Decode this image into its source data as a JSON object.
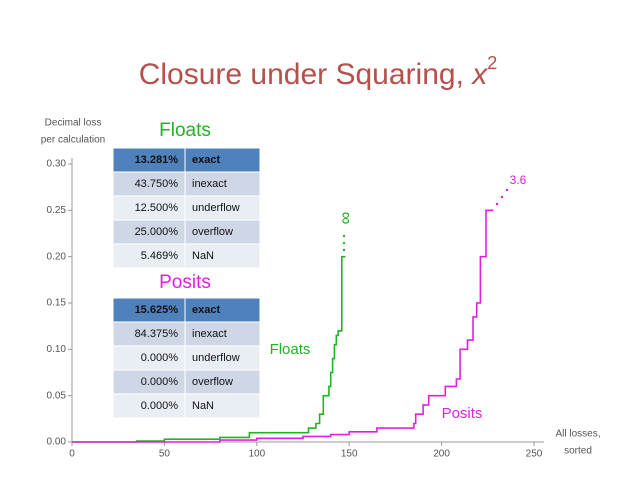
{
  "chart_data": {
    "type": "line",
    "title": "Closure under Squaring,",
    "title_var": "x",
    "title_sup": "2",
    "ylabel_lines": [
      "Decimal loss",
      "per calculation"
    ],
    "xlabel_lines": [
      "All losses,",
      "sorted"
    ],
    "xlim": [
      0,
      250
    ],
    "xticks": [
      0,
      50,
      100,
      150,
      200,
      250
    ],
    "ylim": [
      0,
      0.3
    ],
    "yticks": [
      {
        "value": 0,
        "label": "0.00"
      },
      {
        "value": 0.05,
        "label": "0.05"
      },
      {
        "value": 0.1,
        "label": "0.10"
      },
      {
        "value": 0.15,
        "label": "0.15"
      },
      {
        "value": 0.2,
        "label": "0.20"
      },
      {
        "value": 0.25,
        "label": "0.25"
      },
      {
        "value": 0.3,
        "label": "0.30"
      }
    ],
    "series": [
      {
        "name": "Floats",
        "color": "#22b322",
        "x": [
          0,
          35,
          35,
          50,
          50,
          80,
          80,
          96,
          96,
          128,
          128,
          132,
          132,
          134,
          134,
          136,
          136,
          139,
          139,
          140,
          140,
          141,
          141,
          142,
          142,
          143,
          143,
          144,
          144,
          146,
          146,
          148
        ],
        "values": [
          0,
          0,
          0.001,
          0.001,
          0.003,
          0.003,
          0.005,
          0.005,
          0.01,
          0.01,
          0.015,
          0.015,
          0.02,
          0.02,
          0.03,
          0.03,
          0.05,
          0.05,
          0.06,
          0.06,
          0.075,
          0.075,
          0.09,
          0.09,
          0.105,
          0.105,
          0.115,
          0.115,
          0.12,
          0.12,
          0.2,
          0.2
        ],
        "end_label": "∞"
      },
      {
        "name": "Posits",
        "color": "#e020e0",
        "x": [
          0,
          80,
          80,
          100,
          100,
          125,
          125,
          140,
          140,
          150,
          150,
          165,
          165,
          185,
          185,
          186,
          186,
          190,
          190,
          193,
          193,
          202,
          202,
          208,
          208,
          210,
          210,
          214,
          214,
          217,
          217,
          219,
          219,
          221,
          221,
          224,
          224,
          228
        ],
        "values": [
          0,
          0,
          0.002,
          0.002,
          0.004,
          0.004,
          0.006,
          0.006,
          0.008,
          0.008,
          0.011,
          0.011,
          0.015,
          0.015,
          0.02,
          0.02,
          0.03,
          0.03,
          0.04,
          0.04,
          0.05,
          0.05,
          0.06,
          0.06,
          0.068,
          0.068,
          0.1,
          0.1,
          0.11,
          0.11,
          0.135,
          0.135,
          0.15,
          0.15,
          0.2,
          0.2,
          0.25,
          0.25
        ],
        "end_label": "3.6"
      }
    ],
    "tables": [
      {
        "title": "Floats",
        "rows": [
          [
            "13.281%",
            "exact"
          ],
          [
            "43.750%",
            "inexact"
          ],
          [
            "12.500%",
            "underflow"
          ],
          [
            "25.000%",
            "overflow"
          ],
          [
            "5.469%",
            "NaN"
          ]
        ]
      },
      {
        "title": "Posits",
        "rows": [
          [
            "15.625%",
            "exact"
          ],
          [
            "84.375%",
            "inexact"
          ],
          [
            "0.000%",
            "underflow"
          ],
          [
            "0.000%",
            "overflow"
          ],
          [
            "0.000%",
            "NaN"
          ]
        ]
      }
    ]
  }
}
